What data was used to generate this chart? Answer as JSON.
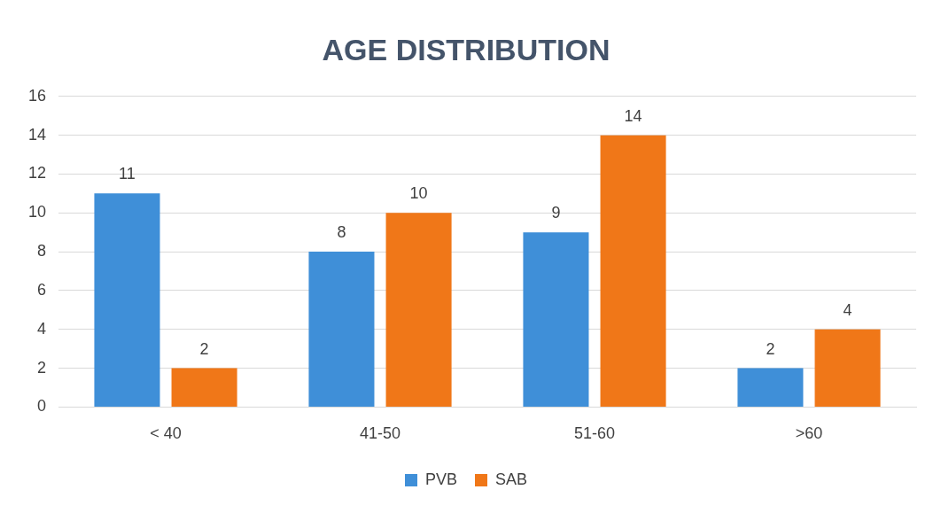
{
  "chart_data": {
    "type": "bar",
    "title": "AGE DISTRIBUTION",
    "categories": [
      "< 40",
      "41-50",
      "51-60",
      ">60"
    ],
    "series": [
      {
        "name": "PVB",
        "color": "#3f8fd8",
        "values": [
          11,
          8,
          9,
          2
        ]
      },
      {
        "name": "SAB",
        "color": "#f07718",
        "values": [
          2,
          10,
          14,
          4
        ]
      }
    ],
    "ylim": [
      0,
      16
    ],
    "yticks": [
      0,
      2,
      4,
      6,
      8,
      10,
      12,
      14,
      16
    ],
    "grid": "y",
    "legend": "bottom",
    "data_labels": true
  }
}
